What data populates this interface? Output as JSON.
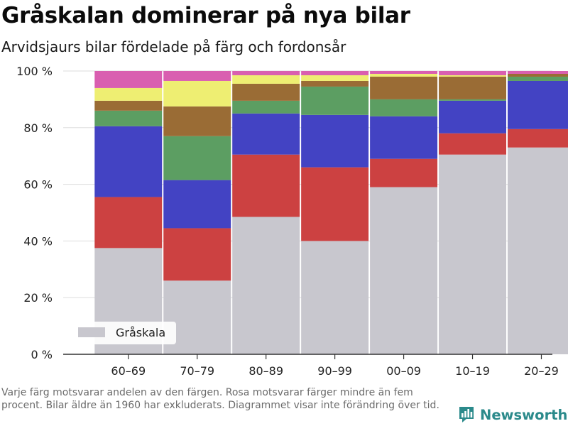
{
  "header": {
    "title": "Gråskalan dominerar på nya bilar",
    "subtitle": "Arvidsjaurs bilar fördelade på färg och fordonsår"
  },
  "footnote": "Varje färg motsvarar andelen av den färgen. Rosa motsvarar färger mindre än fem procent. Bilar äldre än 1960 har exkluderats. Diagrammet visar inte förändring över tid.",
  "brand": {
    "name": "Newsworthy",
    "icon": "newsworthy-bar-chart-logo-icon"
  },
  "chart_data": {
    "type": "bar",
    "stacked": true,
    "categories": [
      "60–69",
      "70–79",
      "80–89",
      "90–99",
      "00–09",
      "10–19",
      "20–29"
    ],
    "series": [
      {
        "name": "Gråskala",
        "color": "#c8c7ce",
        "values": [
          37.5,
          26.0,
          48.5,
          40.0,
          59.0,
          70.5,
          73.0
        ]
      },
      {
        "color": "#cc4141",
        "values": [
          18.0,
          18.5,
          22.0,
          26.0,
          10.0,
          7.5,
          6.5
        ]
      },
      {
        "color": "#4343c3",
        "values": [
          25.0,
          17.0,
          14.5,
          18.5,
          15.0,
          11.5,
          17.0
        ]
      },
      {
        "color": "#5c9e62",
        "values": [
          5.5,
          15.5,
          4.5,
          10.0,
          6.0,
          0.5,
          1.5
        ]
      },
      {
        "color": "#9a6c35",
        "values": [
          3.5,
          10.5,
          6.0,
          2.0,
          8.0,
          8.0,
          1.0
        ]
      },
      {
        "color": "#eeee72",
        "values": [
          4.5,
          9.0,
          3.0,
          2.0,
          1.0,
          0.5,
          0.0
        ]
      },
      {
        "color": "#d95fb0",
        "values": [
          6.0,
          3.5,
          1.5,
          1.5,
          1.0,
          1.5,
          1.0
        ]
      }
    ],
    "y_ticks": [
      "0 %",
      "20 %",
      "40 %",
      "60 %",
      "80 %",
      "100 %"
    ],
    "ylim": [
      0,
      100
    ],
    "xlabel": "",
    "ylabel": "",
    "grid": true,
    "legend": {
      "position": "bottom-left",
      "label": "Gråskala"
    }
  }
}
